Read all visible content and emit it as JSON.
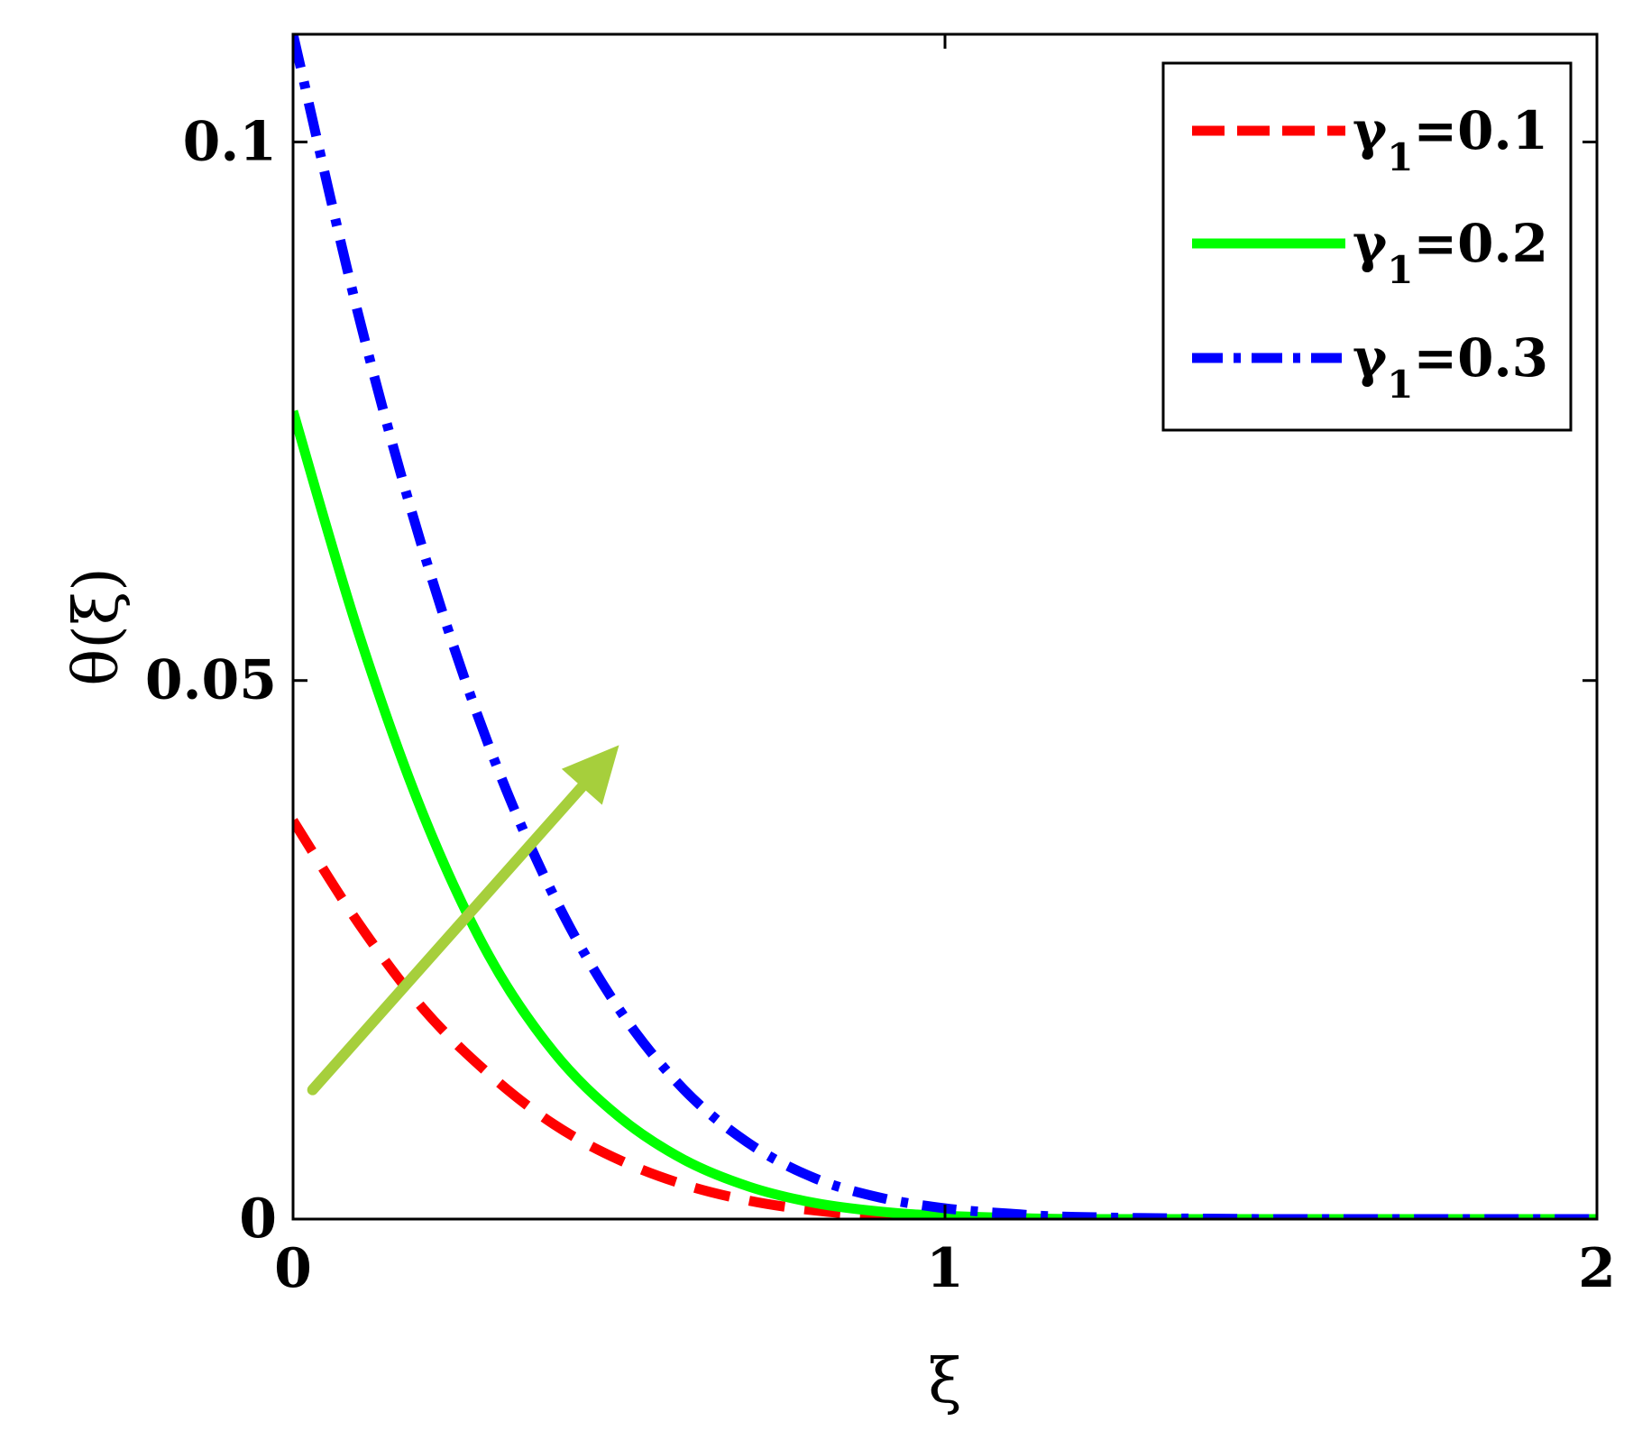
{
  "chart_data": {
    "type": "line",
    "xlabel": "ξ",
    "ylabel": "θ(ξ)",
    "xlim": [
      0,
      2
    ],
    "ylim": [
      0,
      0.11
    ],
    "xticks": [
      0,
      1,
      2
    ],
    "xtick_labels": [
      "0",
      "1",
      "2"
    ],
    "yticks": [
      0,
      0.05,
      0.1
    ],
    "ytick_labels": [
      "0",
      "0.05",
      "0.1"
    ],
    "grid": false,
    "legend_position": "top-right",
    "legend_symbol": "γ",
    "legend_subscript": "1",
    "series": [
      {
        "name": "γ1=0.1",
        "symbol": "γ",
        "subscript": "1",
        "value_text": "=0.1",
        "color": "#ff0000",
        "style": "dashed",
        "x": [
          0,
          0.1,
          0.2,
          0.3,
          0.4,
          0.5,
          0.6,
          0.7,
          0.8,
          0.9,
          1.0,
          1.2,
          1.5,
          2.0
        ],
        "y": [
          0.037,
          0.0275,
          0.0195,
          0.0135,
          0.0088,
          0.0055,
          0.0032,
          0.0017,
          0.0008,
          0.0003,
          0.0001,
          0,
          0,
          0
        ]
      },
      {
        "name": "γ1=0.2",
        "symbol": "γ",
        "subscript": "1",
        "value_text": "=0.2",
        "color": "#00ff00",
        "style": "solid",
        "x": [
          0,
          0.1,
          0.2,
          0.3,
          0.4,
          0.5,
          0.6,
          0.7,
          0.8,
          0.9,
          1.0,
          1.2,
          1.5,
          2.0
        ],
        "y": [
          0.075,
          0.0545,
          0.0375,
          0.0245,
          0.0155,
          0.0095,
          0.0055,
          0.003,
          0.0015,
          0.0007,
          0.0003,
          0,
          0,
          0
        ]
      },
      {
        "name": "γ1=0.3",
        "symbol": "γ",
        "subscript": "1",
        "value_text": "=0.3",
        "color": "#0000ff",
        "style": "dashdot",
        "x": [
          0,
          0.1,
          0.2,
          0.3,
          0.4,
          0.5,
          0.6,
          0.7,
          0.8,
          0.9,
          1.0,
          1.1,
          1.2,
          1.5,
          2.0
        ],
        "y": [
          0.11,
          0.084,
          0.062,
          0.044,
          0.03,
          0.0195,
          0.012,
          0.007,
          0.0038,
          0.002,
          0.001,
          0.0005,
          0.0002,
          0,
          0
        ]
      }
    ],
    "annotation_arrow": {
      "color": "#a6cf3c",
      "from": [
        0.03,
        0.012
      ],
      "to": [
        0.5,
        0.044
      ]
    }
  }
}
